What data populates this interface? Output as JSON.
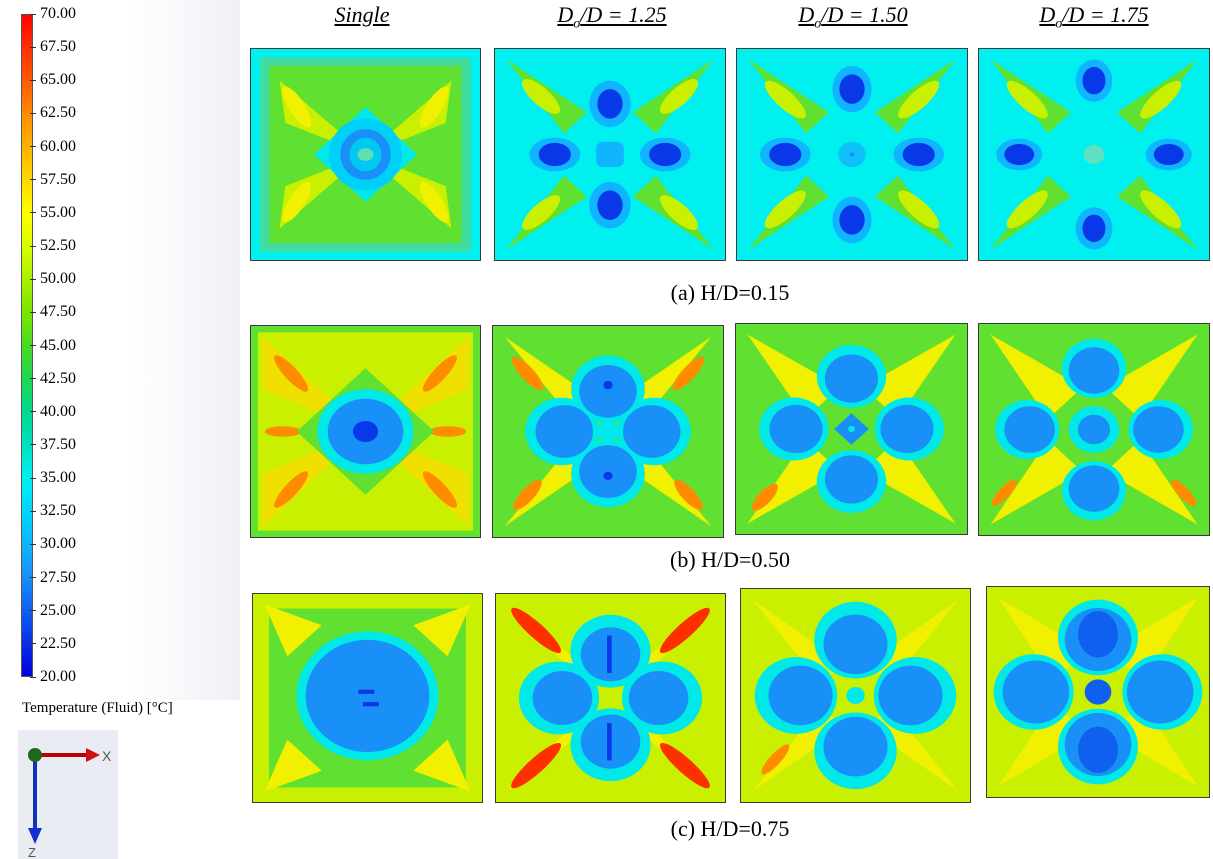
{
  "legend": {
    "ticks": [
      "70.00",
      "67.50",
      "65.00",
      "62.50",
      "60.00",
      "57.50",
      "55.00",
      "52.50",
      "50.00",
      "47.50",
      "45.00",
      "42.50",
      "40.00",
      "37.50",
      "35.00",
      "32.50",
      "30.00",
      "27.50",
      "25.00",
      "22.50",
      "20.00"
    ],
    "title": "Temperature (Fluid) [°C]",
    "color_scale": [
      "#ff0000",
      "#ff3000",
      "#ff5a00",
      "#ff8c00",
      "#ffb400",
      "#ffd800",
      "#ffff00",
      "#d8ff00",
      "#a8f000",
      "#78e600",
      "#48dc20",
      "#20d850",
      "#00d890",
      "#00e0c0",
      "#00f0f0",
      "#00d8ff",
      "#10b4ff",
      "#1890f8",
      "#1060f0",
      "#0830e8",
      "#0000e0"
    ]
  },
  "columns": {
    "single": "Single",
    "d125_pre": "D",
    "d125_sub": "o",
    "d125_post": "/D = 1.25",
    "d150_pre": "D",
    "d150_sub": "o",
    "d150_post": "/D = 1.50",
    "d175_pre": "D",
    "d175_sub": "o",
    "d175_post": "/D = 1.75"
  },
  "rows": {
    "a": "(a) H/D=0.15",
    "b": "(b) H/D=0.50",
    "c": "(c) H/D=0.75"
  },
  "triad": {
    "x_label": "X",
    "z_label": "Z"
  }
}
